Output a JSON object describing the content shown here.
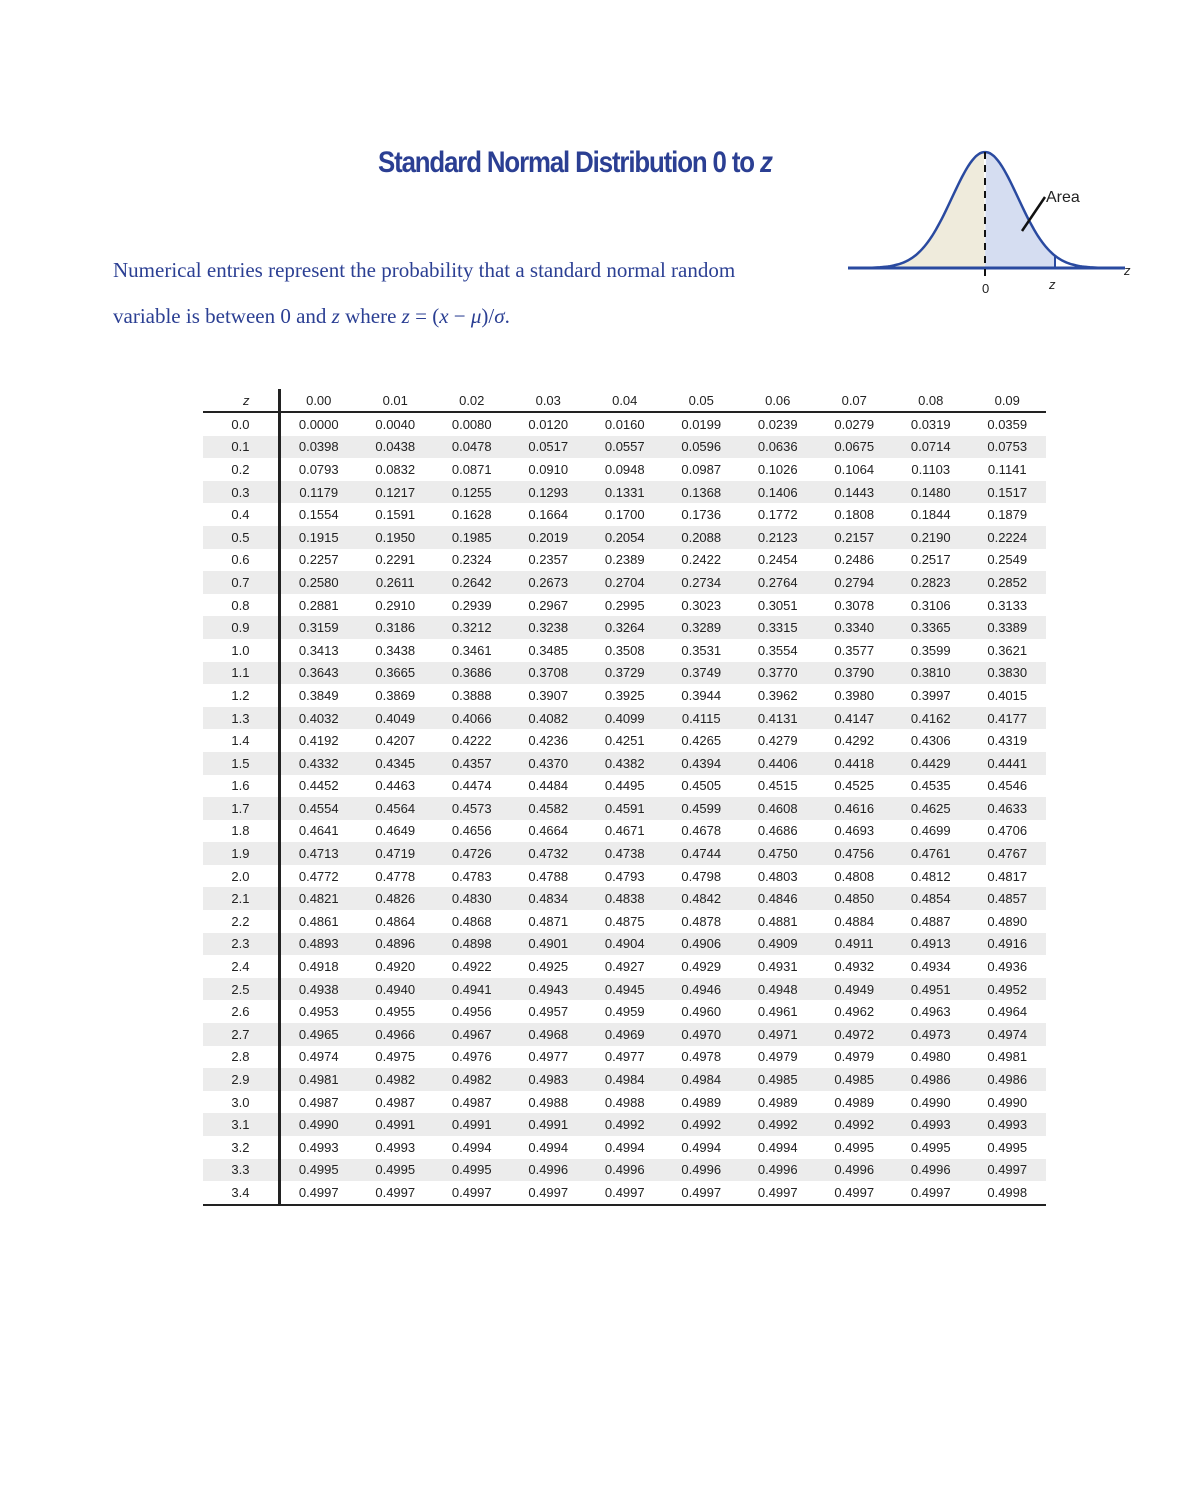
{
  "header": {
    "title": "Standard Normal Distribution 0 to",
    "title_variable": "z"
  },
  "description": [
    "Numerical entries represent the probability that a standard normal random variable is between 0 and ",
    "z",
    " where ",
    "z",
    " = (",
    "x",
    " − ",
    "μ",
    ")/",
    "σ",
    "."
  ],
  "figure": {
    "area_label": "Area",
    "origin_label": "0",
    "z_label": "z",
    "axis_label": "z"
  },
  "table": {
    "columns": [
      "z",
      "0.00",
      "0.01",
      "0.02",
      "0.03",
      "0.04",
      "0.05",
      "0.06",
      "0.07",
      "0.08",
      "0.09"
    ],
    "rows": [
      [
        "0.0",
        "0.0000",
        "0.0040",
        "0.0080",
        "0.0120",
        "0.0160",
        "0.0199",
        "0.0239",
        "0.0279",
        "0.0319",
        "0.0359"
      ],
      [
        "0.1",
        "0.0398",
        "0.0438",
        "0.0478",
        "0.0517",
        "0.0557",
        "0.0596",
        "0.0636",
        "0.0675",
        "0.0714",
        "0.0753"
      ],
      [
        "0.2",
        "0.0793",
        "0.0832",
        "0.0871",
        "0.0910",
        "0.0948",
        "0.0987",
        "0.1026",
        "0.1064",
        "0.1103",
        "0.1141"
      ],
      [
        "0.3",
        "0.1179",
        "0.1217",
        "0.1255",
        "0.1293",
        "0.1331",
        "0.1368",
        "0.1406",
        "0.1443",
        "0.1480",
        "0.1517"
      ],
      [
        "0.4",
        "0.1554",
        "0.1591",
        "0.1628",
        "0.1664",
        "0.1700",
        "0.1736",
        "0.1772",
        "0.1808",
        "0.1844",
        "0.1879"
      ],
      [
        "0.5",
        "0.1915",
        "0.1950",
        "0.1985",
        "0.2019",
        "0.2054",
        "0.2088",
        "0.2123",
        "0.2157",
        "0.2190",
        "0.2224"
      ],
      [
        "0.6",
        "0.2257",
        "0.2291",
        "0.2324",
        "0.2357",
        "0.2389",
        "0.2422",
        "0.2454",
        "0.2486",
        "0.2517",
        "0.2549"
      ],
      [
        "0.7",
        "0.2580",
        "0.2611",
        "0.2642",
        "0.2673",
        "0.2704",
        "0.2734",
        "0.2764",
        "0.2794",
        "0.2823",
        "0.2852"
      ],
      [
        "0.8",
        "0.2881",
        "0.2910",
        "0.2939",
        "0.2967",
        "0.2995",
        "0.3023",
        "0.3051",
        "0.3078",
        "0.3106",
        "0.3133"
      ],
      [
        "0.9",
        "0.3159",
        "0.3186",
        "0.3212",
        "0.3238",
        "0.3264",
        "0.3289",
        "0.3315",
        "0.3340",
        "0.3365",
        "0.3389"
      ],
      [
        "1.0",
        "0.3413",
        "0.3438",
        "0.3461",
        "0.3485",
        "0.3508",
        "0.3531",
        "0.3554",
        "0.3577",
        "0.3599",
        "0.3621"
      ],
      [
        "1.1",
        "0.3643",
        "0.3665",
        "0.3686",
        "0.3708",
        "0.3729",
        "0.3749",
        "0.3770",
        "0.3790",
        "0.3810",
        "0.3830"
      ],
      [
        "1.2",
        "0.3849",
        "0.3869",
        "0.3888",
        "0.3907",
        "0.3925",
        "0.3944",
        "0.3962",
        "0.3980",
        "0.3997",
        "0.4015"
      ],
      [
        "1.3",
        "0.4032",
        "0.4049",
        "0.4066",
        "0.4082",
        "0.4099",
        "0.4115",
        "0.4131",
        "0.4147",
        "0.4162",
        "0.4177"
      ],
      [
        "1.4",
        "0.4192",
        "0.4207",
        "0.4222",
        "0.4236",
        "0.4251",
        "0.4265",
        "0.4279",
        "0.4292",
        "0.4306",
        "0.4319"
      ],
      [
        "1.5",
        "0.4332",
        "0.4345",
        "0.4357",
        "0.4370",
        "0.4382",
        "0.4394",
        "0.4406",
        "0.4418",
        "0.4429",
        "0.4441"
      ],
      [
        "1.6",
        "0.4452",
        "0.4463",
        "0.4474",
        "0.4484",
        "0.4495",
        "0.4505",
        "0.4515",
        "0.4525",
        "0.4535",
        "0.4546"
      ],
      [
        "1.7",
        "0.4554",
        "0.4564",
        "0.4573",
        "0.4582",
        "0.4591",
        "0.4599",
        "0.4608",
        "0.4616",
        "0.4625",
        "0.4633"
      ],
      [
        "1.8",
        "0.4641",
        "0.4649",
        "0.4656",
        "0.4664",
        "0.4671",
        "0.4678",
        "0.4686",
        "0.4693",
        "0.4699",
        "0.4706"
      ],
      [
        "1.9",
        "0.4713",
        "0.4719",
        "0.4726",
        "0.4732",
        "0.4738",
        "0.4744",
        "0.4750",
        "0.4756",
        "0.4761",
        "0.4767"
      ],
      [
        "2.0",
        "0.4772",
        "0.4778",
        "0.4783",
        "0.4788",
        "0.4793",
        "0.4798",
        "0.4803",
        "0.4808",
        "0.4812",
        "0.4817"
      ],
      [
        "2.1",
        "0.4821",
        "0.4826",
        "0.4830",
        "0.4834",
        "0.4838",
        "0.4842",
        "0.4846",
        "0.4850",
        "0.4854",
        "0.4857"
      ],
      [
        "2.2",
        "0.4861",
        "0.4864",
        "0.4868",
        "0.4871",
        "0.4875",
        "0.4878",
        "0.4881",
        "0.4884",
        "0.4887",
        "0.4890"
      ],
      [
        "2.3",
        "0.4893",
        "0.4896",
        "0.4898",
        "0.4901",
        "0.4904",
        "0.4906",
        "0.4909",
        "0.4911",
        "0.4913",
        "0.4916"
      ],
      [
        "2.4",
        "0.4918",
        "0.4920",
        "0.4922",
        "0.4925",
        "0.4927",
        "0.4929",
        "0.4931",
        "0.4932",
        "0.4934",
        "0.4936"
      ],
      [
        "2.5",
        "0.4938",
        "0.4940",
        "0.4941",
        "0.4943",
        "0.4945",
        "0.4946",
        "0.4948",
        "0.4949",
        "0.4951",
        "0.4952"
      ],
      [
        "2.6",
        "0.4953",
        "0.4955",
        "0.4956",
        "0.4957",
        "0.4959",
        "0.4960",
        "0.4961",
        "0.4962",
        "0.4963",
        "0.4964"
      ],
      [
        "2.7",
        "0.4965",
        "0.4966",
        "0.4967",
        "0.4968",
        "0.4969",
        "0.4970",
        "0.4971",
        "0.4972",
        "0.4973",
        "0.4974"
      ],
      [
        "2.8",
        "0.4974",
        "0.4975",
        "0.4976",
        "0.4977",
        "0.4977",
        "0.4978",
        "0.4979",
        "0.4979",
        "0.4980",
        "0.4981"
      ],
      [
        "2.9",
        "0.4981",
        "0.4982",
        "0.4982",
        "0.4983",
        "0.4984",
        "0.4984",
        "0.4985",
        "0.4985",
        "0.4986",
        "0.4986"
      ],
      [
        "3.0",
        "0.4987",
        "0.4987",
        "0.4987",
        "0.4988",
        "0.4988",
        "0.4989",
        "0.4989",
        "0.4989",
        "0.4990",
        "0.4990"
      ],
      [
        "3.1",
        "0.4990",
        "0.4991",
        "0.4991",
        "0.4991",
        "0.4992",
        "0.4992",
        "0.4992",
        "0.4992",
        "0.4993",
        "0.4993"
      ],
      [
        "3.2",
        "0.4993",
        "0.4993",
        "0.4994",
        "0.4994",
        "0.4994",
        "0.4994",
        "0.4994",
        "0.4995",
        "0.4995",
        "0.4995"
      ],
      [
        "3.3",
        "0.4995",
        "0.4995",
        "0.4995",
        "0.4996",
        "0.4996",
        "0.4996",
        "0.4996",
        "0.4996",
        "0.4996",
        "0.4997"
      ],
      [
        "3.4",
        "0.4997",
        "0.4997",
        "0.4997",
        "0.4997",
        "0.4997",
        "0.4997",
        "0.4997",
        "0.4997",
        "0.4997",
        "0.4998"
      ]
    ]
  }
}
